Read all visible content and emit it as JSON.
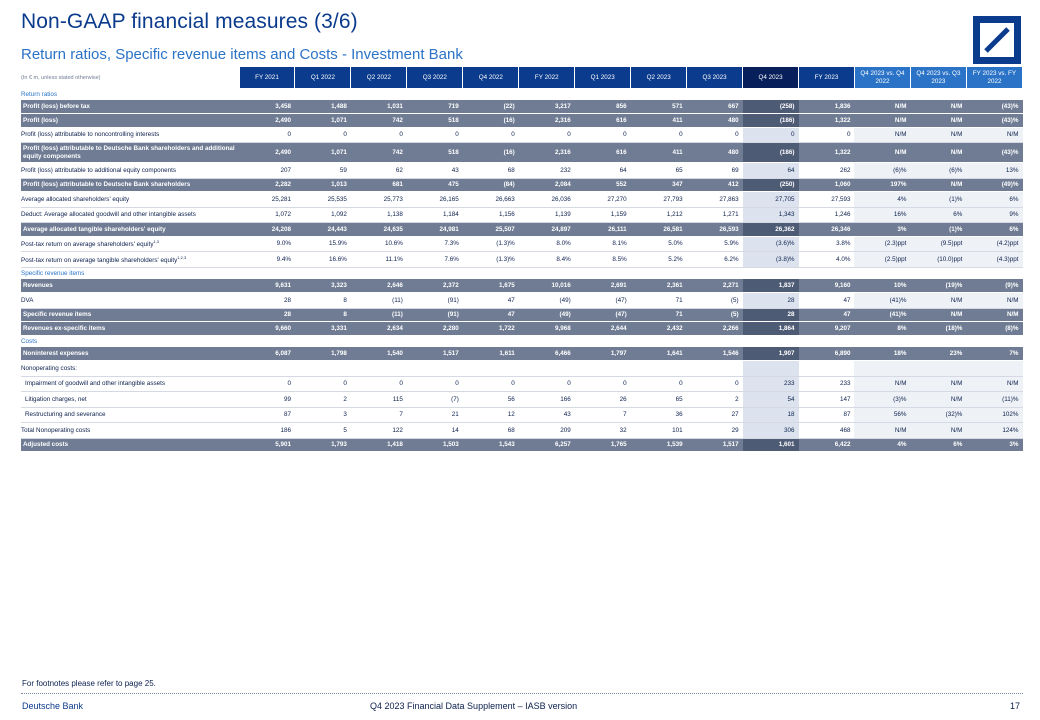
{
  "header": {
    "title": "Non-GAAP financial measures (3/6)",
    "subtitle": "Return ratios, Specific revenue items and Costs - Investment Bank",
    "logo_icon": "deutsche-bank-logo"
  },
  "table": {
    "unit_label": "(In € m, unless stated otherwise)",
    "columns": [
      "FY 2021",
      "Q1 2022",
      "Q2 2022",
      "Q3 2022",
      "Q4 2022",
      "FY 2022",
      "Q1 2023",
      "Q2 2023",
      "Q3 2023",
      "Q4 2023",
      "FY 2023",
      "Q4 2023 vs. Q4 2022",
      "Q4 2023 vs. Q3 2023",
      "FY 2023 vs. FY 2022"
    ],
    "sections": [
      {
        "title": "Return ratios",
        "rows": [
          {
            "label": "Profit (loss) before tax",
            "style": "bold",
            "values": [
              "3,458",
              "1,488",
              "1,031",
              "719",
              "(22)",
              "3,217",
              "856",
              "571",
              "667",
              "(258)",
              "1,836",
              "N/M",
              "N/M",
              "(43)%"
            ]
          },
          {
            "label": "Profit (loss)",
            "style": "bold",
            "values": [
              "2,490",
              "1,071",
              "742",
              "518",
              "(16)",
              "2,316",
              "616",
              "411",
              "480",
              "(186)",
              "1,322",
              "N/M",
              "N/M",
              "(43)%"
            ]
          },
          {
            "label": "Profit (loss) attributable to noncontrolling interests",
            "style": "plain",
            "values": [
              "0",
              "0",
              "0",
              "0",
              "0",
              "0",
              "0",
              "0",
              "0",
              "0",
              "0",
              "N/M",
              "N/M",
              "N/M"
            ]
          },
          {
            "label": "Profit (loss) attributable to Deutsche Bank shareholders and additional equity components",
            "style": "bold-tall",
            "values": [
              "2,490",
              "1,071",
              "742",
              "518",
              "(16)",
              "2,316",
              "616",
              "411",
              "480",
              "(186)",
              "1,322",
              "N/M",
              "N/M",
              "(43)%"
            ]
          },
          {
            "label": "Profit (loss) attributable to additional equity components",
            "style": "plain",
            "values": [
              "207",
              "59",
              "62",
              "43",
              "68",
              "232",
              "64",
              "65",
              "69",
              "64",
              "262",
              "(6)%",
              "(6)%",
              "13%"
            ]
          },
          {
            "label": "Profit (loss) attributable to Deutsche Bank shareholders",
            "style": "bold",
            "values": [
              "2,282",
              "1,013",
              "681",
              "475",
              "(84)",
              "2,084",
              "552",
              "347",
              "412",
              "(250)",
              "1,060",
              "197%",
              "N/M",
              "(49)%"
            ]
          },
          {
            "label": "Average allocated shareholders' equity",
            "style": "plain",
            "values": [
              "25,281",
              "25,535",
              "25,773",
              "26,165",
              "26,663",
              "26,036",
              "27,270",
              "27,793",
              "27,863",
              "27,705",
              "27,593",
              "4%",
              "(1)%",
              "6%"
            ]
          },
          {
            "label": "Deduct: Average allocated goodwill and other intangible assets",
            "style": "plain",
            "values": [
              "1,072",
              "1,092",
              "1,138",
              "1,184",
              "1,156",
              "1,139",
              "1,159",
              "1,212",
              "1,271",
              "1,343",
              "1,246",
              "16%",
              "6%",
              "9%"
            ]
          },
          {
            "label": "Average allocated tangible shareholders' equity",
            "style": "bold",
            "values": [
              "24,208",
              "24,443",
              "24,635",
              "24,981",
              "25,507",
              "24,897",
              "26,111",
              "26,581",
              "26,593",
              "26,362",
              "26,346",
              "3%",
              "(1)%",
              "6%"
            ]
          },
          {
            "label": "Post-tax return on average shareholders' equity",
            "sup": "1,3",
            "style": "plain",
            "values": [
              "9.0%",
              "15.9%",
              "10.6%",
              "7.3%",
              "(1.3)%",
              "8.0%",
              "8.1%",
              "5.0%",
              "5.9%",
              "(3.6)%",
              "3.8%",
              "(2.3)ppt",
              "(9.5)ppt",
              "(4.2)ppt"
            ]
          },
          {
            "label": "Post-tax return on average tangible shareholders' equity",
            "sup": "1,2,3",
            "style": "plain",
            "values": [
              "9.4%",
              "16.6%",
              "11.1%",
              "7.6%",
              "(1.3)%",
              "8.4%",
              "8.5%",
              "5.2%",
              "6.2%",
              "(3.8)%",
              "4.0%",
              "(2.5)ppt",
              "(10.0)ppt",
              "(4.3)ppt"
            ]
          }
        ]
      },
      {
        "title": "Specific revenue items",
        "rows": [
          {
            "label": "Revenues",
            "style": "bold",
            "values": [
              "9,631",
              "3,323",
              "2,646",
              "2,372",
              "1,675",
              "10,016",
              "2,691",
              "2,361",
              "2,271",
              "1,837",
              "9,160",
              "10%",
              "(19)%",
              "(9)%"
            ]
          },
          {
            "label": "DVA",
            "style": "plain",
            "values": [
              "28",
              "8",
              "(11)",
              "(91)",
              "47",
              "(49)",
              "(47)",
              "71",
              "(5)",
              "28",
              "47",
              "(41)%",
              "N/M",
              "N/M"
            ]
          },
          {
            "label": "Specific revenue items",
            "style": "bold",
            "values": [
              "28",
              "8",
              "(11)",
              "(91)",
              "47",
              "(49)",
              "(47)",
              "71",
              "(5)",
              "28",
              "47",
              "(41)%",
              "N/M",
              "N/M"
            ]
          },
          {
            "label": "Revenues ex-specific items",
            "style": "bold",
            "values": [
              "9,660",
              "3,331",
              "2,634",
              "2,280",
              "1,722",
              "9,968",
              "2,644",
              "2,432",
              "2,266",
              "1,864",
              "9,207",
              "8%",
              "(18)%",
              "(8)%"
            ]
          }
        ]
      },
      {
        "title": "Costs",
        "rows": [
          {
            "label": "Noninterest expenses",
            "style": "bold",
            "values": [
              "6,087",
              "1,798",
              "1,540",
              "1,517",
              "1,611",
              "6,466",
              "1,797",
              "1,641",
              "1,546",
              "1,907",
              "6,890",
              "18%",
              "23%",
              "7%"
            ]
          },
          {
            "label": "Nonoperating costs:",
            "style": "plain",
            "values": [
              "",
              "",
              "",
              "",
              "",
              "",
              "",
              "",
              "",
              "",
              "",
              "",
              "",
              ""
            ]
          },
          {
            "label": "Impairment of goodwill and other intangible assets",
            "style": "plain-indent",
            "values": [
              "0",
              "0",
              "0",
              "0",
              "0",
              "0",
              "0",
              "0",
              "0",
              "233",
              "233",
              "N/M",
              "N/M",
              "N/M"
            ]
          },
          {
            "label": "Litigation charges, net",
            "style": "plain-indent",
            "values": [
              "99",
              "2",
              "115",
              "(7)",
              "56",
              "166",
              "26",
              "65",
              "2",
              "54",
              "147",
              "(3)%",
              "N/M",
              "(11)%"
            ]
          },
          {
            "label": "Restructuring and severance",
            "style": "plain-indent",
            "values": [
              "87",
              "3",
              "7",
              "21",
              "12",
              "43",
              "7",
              "36",
              "27",
              "18",
              "87",
              "56%",
              "(32)%",
              "102%"
            ]
          },
          {
            "label": "Total Nonoperating costs",
            "style": "plain",
            "values": [
              "186",
              "5",
              "122",
              "14",
              "68",
              "209",
              "32",
              "101",
              "29",
              "306",
              "468",
              "N/M",
              "N/M",
              "124%"
            ]
          },
          {
            "label": "Adjusted costs",
            "style": "bold",
            "values": [
              "5,901",
              "1,793",
              "1,418",
              "1,503",
              "1,543",
              "6,257",
              "1,765",
              "1,539",
              "1,517",
              "1,601",
              "6,422",
              "4%",
              "6%",
              "3%"
            ]
          }
        ]
      }
    ]
  },
  "footer": {
    "footnote": "For footnotes please refer to page 25.",
    "brand": "Deutsche Bank",
    "document": "Q4 2023 Financial Data Supplement – IASB version",
    "page_number": "17"
  },
  "colors": {
    "primary": "#0b3b8c",
    "accent": "#2a73c7",
    "row_bold": "#6f7c93"
  }
}
